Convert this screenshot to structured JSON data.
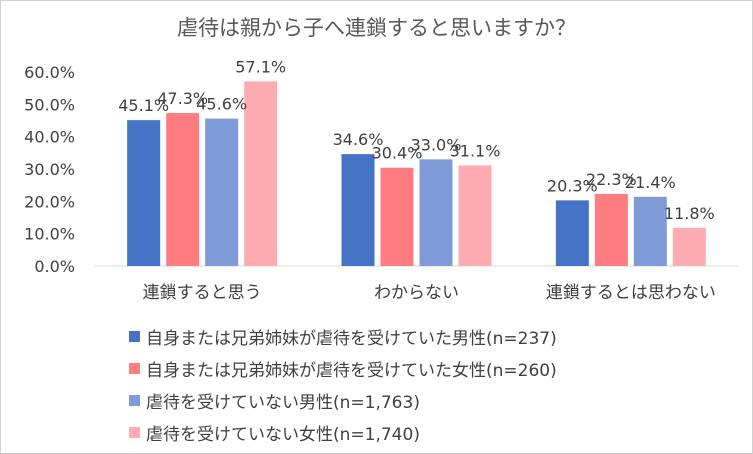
{
  "chart_data": {
    "type": "bar",
    "title": "虐待は親から子へ連鎖すると思いますか？",
    "categories": [
      "連鎖すると思う",
      "わからない",
      "連鎖するとは思わない"
    ],
    "series": [
      {
        "name": "自身または兄弟姉妹が虐待を受けていた男性(n=237)",
        "values": [
          45.1,
          34.6,
          20.3
        ],
        "labels": [
          "45.1%",
          "34.6%",
          "20.3%"
        ],
        "color": "#4472C4"
      },
      {
        "name": "自身または兄弟姉妹が虐待を受けていた女性(n=260)",
        "values": [
          47.3,
          30.4,
          22.3
        ],
        "labels": [
          "47.3%",
          "30.4%",
          "22.3%"
        ],
        "color": "#FF7C80"
      },
      {
        "name": "虐待を受けていない男性(n=1,763)",
        "values": [
          45.6,
          33.0,
          21.4
        ],
        "labels": [
          "45.6%",
          "33.0%",
          "21.4%"
        ],
        "color": "#7F9CD8"
      },
      {
        "name": "虐待を受けていない女性(n=1,740)",
        "values": [
          57.1,
          31.1,
          11.8
        ],
        "labels": [
          "57.1%",
          "31.1%",
          "11.8%"
        ],
        "color": "#FFABB2"
      }
    ],
    "yticks": [
      "0.0%",
      "10.0%",
      "20.0%",
      "30.0%",
      "40.0%",
      "50.0%",
      "60.0%"
    ],
    "ylim": [
      0,
      60
    ],
    "xlabel": "",
    "ylabel": "",
    "grid": false,
    "legend": "bottom"
  }
}
